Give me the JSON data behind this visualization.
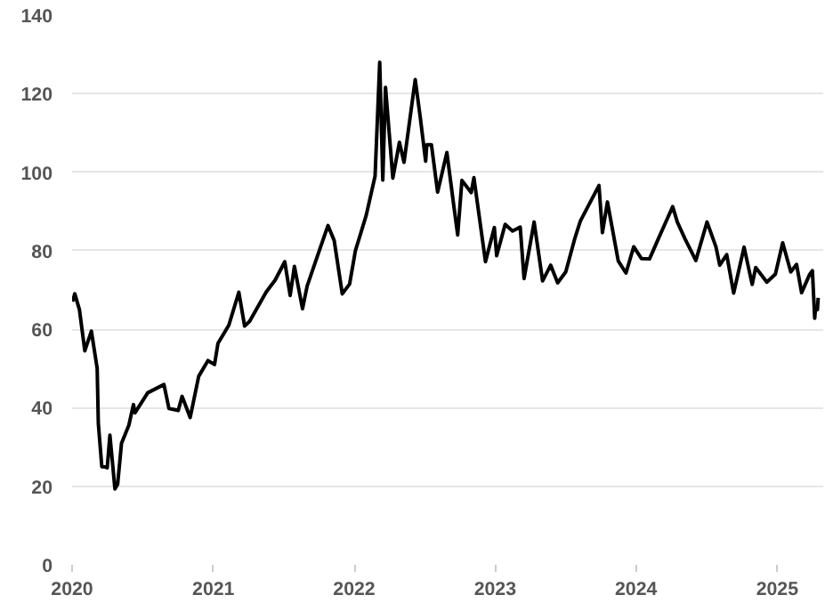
{
  "chart_data": {
    "type": "line",
    "x": [
      "2020-01-02",
      "2020-01-08",
      "2020-01-20",
      "2020-02-03",
      "2020-02-20",
      "2020-03-06",
      "2020-03-09",
      "2020-03-18",
      "2020-03-27",
      "2020-04-01",
      "2020-04-08",
      "2020-04-21",
      "2020-04-28",
      "2020-05-08",
      "2020-05-27",
      "2020-06-08",
      "2020-06-12",
      "2020-07-15",
      "2020-08-26",
      "2020-09-08",
      "2020-10-02",
      "2020-10-12",
      "2020-11-02",
      "2020-11-24",
      "2020-12-18",
      "2021-01-04",
      "2021-01-13",
      "2021-02-10",
      "2021-03-08",
      "2021-03-23",
      "2021-04-05",
      "2021-05-18",
      "2021-06-10",
      "2021-07-05",
      "2021-07-19",
      "2021-07-30",
      "2021-08-20",
      "2021-09-01",
      "2021-10-06",
      "2021-10-25",
      "2021-11-10",
      "2021-12-01",
      "2021-12-20",
      "2022-01-04",
      "2022-02-01",
      "2022-02-24",
      "2022-03-08",
      "2022-03-16",
      "2022-03-23",
      "2022-04-11",
      "2022-04-28",
      "2022-05-10",
      "2022-06-08",
      "2022-06-21",
      "2022-07-05",
      "2022-07-08",
      "2022-07-20",
      "2022-08-05",
      "2022-08-29",
      "2022-09-16",
      "2022-09-26",
      "2022-10-07",
      "2022-10-31",
      "2022-11-07",
      "2022-12-07",
      "2022-12-30",
      "2023-01-05",
      "2023-01-27",
      "2023-02-15",
      "2023-03-07",
      "2023-03-17",
      "2023-04-12",
      "2023-05-04",
      "2023-05-25",
      "2023-06-12",
      "2023-07-03",
      "2023-07-27",
      "2023-08-10",
      "2023-09-27",
      "2023-10-06",
      "2023-10-19",
      "2023-11-16",
      "2023-12-06",
      "2023-12-26",
      "2024-01-15",
      "2024-02-05",
      "2024-03-01",
      "2024-04-05",
      "2024-04-17",
      "2024-05-07",
      "2024-06-04",
      "2024-07-03",
      "2024-07-26",
      "2024-08-05",
      "2024-08-23",
      "2024-09-10",
      "2024-10-07",
      "2024-10-28",
      "2024-11-06",
      "2024-12-05",
      "2024-12-27",
      "2025-01-15",
      "2025-02-05",
      "2025-02-20",
      "2025-03-05",
      "2025-03-26",
      "2025-04-02",
      "2025-04-08",
      "2025-04-10",
      "2025-04-15",
      "2025-04-17"
    ],
    "series": [
      {
        "color": "#000000",
        "values": [
          67,
          69,
          65,
          54.5,
          59.5,
          50,
          36,
          25,
          24.9,
          24.7,
          33,
          19.3,
          20.5,
          30.9,
          35.5,
          40.8,
          38.7,
          43.8,
          45.9,
          39.8,
          39.3,
          42.9,
          37.5,
          48,
          52,
          51,
          56.4,
          61,
          69.4,
          60.8,
          62,
          69.5,
          72.5,
          77.2,
          68.6,
          76,
          65.2,
          71,
          81,
          86.4,
          82.6,
          69,
          71.5,
          80,
          89,
          99,
          128,
          98,
          121.6,
          98.5,
          107.6,
          102.5,
          123.6,
          114,
          102.8,
          107,
          107,
          94.9,
          105,
          91.4,
          84,
          97.9,
          94.8,
          98.6,
          77.2,
          85.9,
          78.7,
          86.7,
          85,
          86,
          72.9,
          87.3,
          72.3,
          76.3,
          71.8,
          74.6,
          83.3,
          87.6,
          96.6,
          84.6,
          92.4,
          77.4,
          74.3,
          81,
          78,
          77.9,
          83.5,
          91.2,
          87.3,
          83,
          77.5,
          87.3,
          81,
          76.3,
          79,
          69.2,
          80.9,
          71.4,
          75.7,
          72,
          74,
          82,
          74.6,
          76.5,
          69.3,
          74,
          74.9,
          62.8,
          65.5,
          65,
          68
        ]
      }
    ],
    "xlim": [
      "2020-01-01",
      "2025-04-30"
    ],
    "xticks": [
      "2020",
      "2021",
      "2022",
      "2023",
      "2024",
      "2025"
    ],
    "ylim": [
      0,
      140
    ],
    "yticks": [
      0,
      20,
      40,
      60,
      80,
      100,
      120,
      140
    ],
    "grid": "y",
    "line_style": "solid"
  }
}
